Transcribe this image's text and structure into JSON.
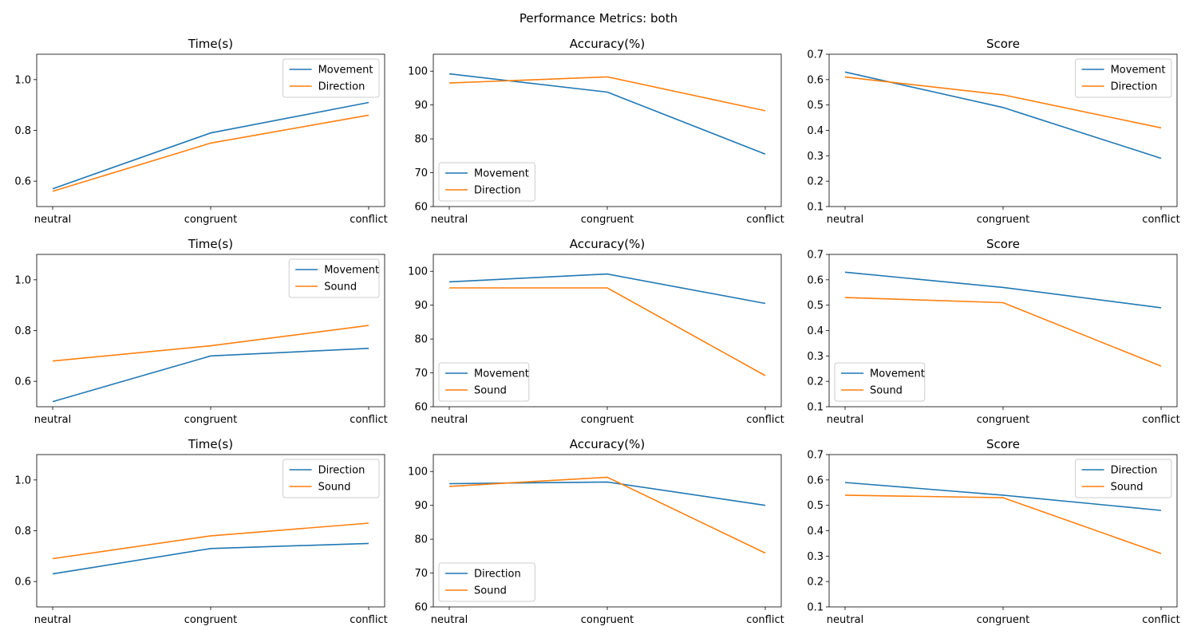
{
  "figure": {
    "suptitle": "Performance Metrics: both"
  },
  "colors": {
    "series1": "#1f77b4",
    "series2": "#ff7f0e"
  },
  "chart_data": [
    {
      "type": "line",
      "title": "Time(s)",
      "categories": [
        "neutral",
        "congruent",
        "conflict"
      ],
      "ylim": [
        0.5,
        1.1
      ],
      "yticks": [
        0.6,
        0.8,
        1.0
      ],
      "ytick_labels": [
        "0.6",
        "0.8",
        "1.0"
      ],
      "legend": "upper-right",
      "series": [
        {
          "name": "Movement",
          "values": [
            0.57,
            0.79,
            0.91
          ]
        },
        {
          "name": "Direction",
          "values": [
            0.56,
            0.75,
            0.86
          ]
        }
      ]
    },
    {
      "type": "line",
      "title": "Accuracy(%)",
      "categories": [
        "neutral",
        "congruent",
        "conflict"
      ],
      "ylim": [
        60,
        105
      ],
      "yticks": [
        60,
        70,
        80,
        90,
        100
      ],
      "ytick_labels": [
        "60",
        "70",
        "80",
        "90",
        "100"
      ],
      "legend": "lower-left",
      "series": [
        {
          "name": "Movement",
          "values": [
            99.2,
            93.8,
            75.5
          ]
        },
        {
          "name": "Direction",
          "values": [
            96.5,
            98.3,
            88.3
          ]
        }
      ]
    },
    {
      "type": "line",
      "title": "Score",
      "categories": [
        "neutral",
        "congruent",
        "conflict"
      ],
      "ylim": [
        0.1,
        0.7
      ],
      "yticks": [
        0.1,
        0.2,
        0.3,
        0.4,
        0.5,
        0.6,
        0.7
      ],
      "ytick_labels": [
        "0.1",
        "0.2",
        "0.3",
        "0.4",
        "0.5",
        "0.6",
        "0.7"
      ],
      "legend": "upper-right",
      "series": [
        {
          "name": "Movement",
          "values": [
            0.63,
            0.49,
            0.29
          ]
        },
        {
          "name": "Direction",
          "values": [
            0.61,
            0.54,
            0.41
          ]
        }
      ]
    },
    {
      "type": "line",
      "title": "Time(s)",
      "categories": [
        "neutral",
        "congruent",
        "conflict"
      ],
      "ylim": [
        0.5,
        1.1
      ],
      "yticks": [
        0.6,
        0.8,
        1.0
      ],
      "ytick_labels": [
        "0.6",
        "0.8",
        "1.0"
      ],
      "legend": "upper-right",
      "series": [
        {
          "name": "Movement",
          "values": [
            0.52,
            0.7,
            0.73
          ]
        },
        {
          "name": "Sound",
          "values": [
            0.68,
            0.74,
            0.82
          ]
        }
      ]
    },
    {
      "type": "line",
      "title": "Accuracy(%)",
      "categories": [
        "neutral",
        "congruent",
        "conflict"
      ],
      "ylim": [
        60,
        105
      ],
      "yticks": [
        60,
        70,
        80,
        90,
        100
      ],
      "ytick_labels": [
        "60",
        "70",
        "80",
        "90",
        "100"
      ],
      "legend": "lower-left",
      "series": [
        {
          "name": "Movement",
          "values": [
            96.9,
            99.2,
            90.5
          ]
        },
        {
          "name": "Sound",
          "values": [
            95.1,
            95.1,
            69.2
          ]
        }
      ]
    },
    {
      "type": "line",
      "title": "Score",
      "categories": [
        "neutral",
        "congruent",
        "conflict"
      ],
      "ylim": [
        0.1,
        0.7
      ],
      "yticks": [
        0.1,
        0.2,
        0.3,
        0.4,
        0.5,
        0.6,
        0.7
      ],
      "ytick_labels": [
        "0.1",
        "0.2",
        "0.3",
        "0.4",
        "0.5",
        "0.6",
        "0.7"
      ],
      "legend": "lower-left",
      "series": [
        {
          "name": "Movement",
          "values": [
            0.63,
            0.57,
            0.49
          ]
        },
        {
          "name": "Sound",
          "values": [
            0.53,
            0.51,
            0.26
          ]
        }
      ]
    },
    {
      "type": "line",
      "title": "Time(s)",
      "categories": [
        "neutral",
        "congruent",
        "conflict"
      ],
      "ylim": [
        0.5,
        1.1
      ],
      "yticks": [
        0.6,
        0.8,
        1.0
      ],
      "ytick_labels": [
        "0.6",
        "0.8",
        "1.0"
      ],
      "legend": "upper-right",
      "series": [
        {
          "name": "Direction",
          "values": [
            0.63,
            0.73,
            0.75
          ]
        },
        {
          "name": "Sound",
          "values": [
            0.69,
            0.78,
            0.83
          ]
        }
      ]
    },
    {
      "type": "line",
      "title": "Accuracy(%)",
      "categories": [
        "neutral",
        "congruent",
        "conflict"
      ],
      "ylim": [
        60,
        105
      ],
      "yticks": [
        60,
        70,
        80,
        90,
        100
      ],
      "ytick_labels": [
        "60",
        "70",
        "80",
        "90",
        "100"
      ],
      "legend": "lower-left",
      "series": [
        {
          "name": "Direction",
          "values": [
            96.4,
            96.9,
            90.0
          ]
        },
        {
          "name": "Sound",
          "values": [
            95.6,
            98.3,
            75.9
          ]
        }
      ]
    },
    {
      "type": "line",
      "title": "Score",
      "categories": [
        "neutral",
        "congruent",
        "conflict"
      ],
      "ylim": [
        0.1,
        0.7
      ],
      "yticks": [
        0.1,
        0.2,
        0.3,
        0.4,
        0.5,
        0.6,
        0.7
      ],
      "ytick_labels": [
        "0.1",
        "0.2",
        "0.3",
        "0.4",
        "0.5",
        "0.6",
        "0.7"
      ],
      "legend": "upper-right",
      "series": [
        {
          "name": "Direction",
          "values": [
            0.59,
            0.54,
            0.48
          ]
        },
        {
          "name": "Sound",
          "values": [
            0.54,
            0.53,
            0.31
          ]
        }
      ]
    }
  ]
}
